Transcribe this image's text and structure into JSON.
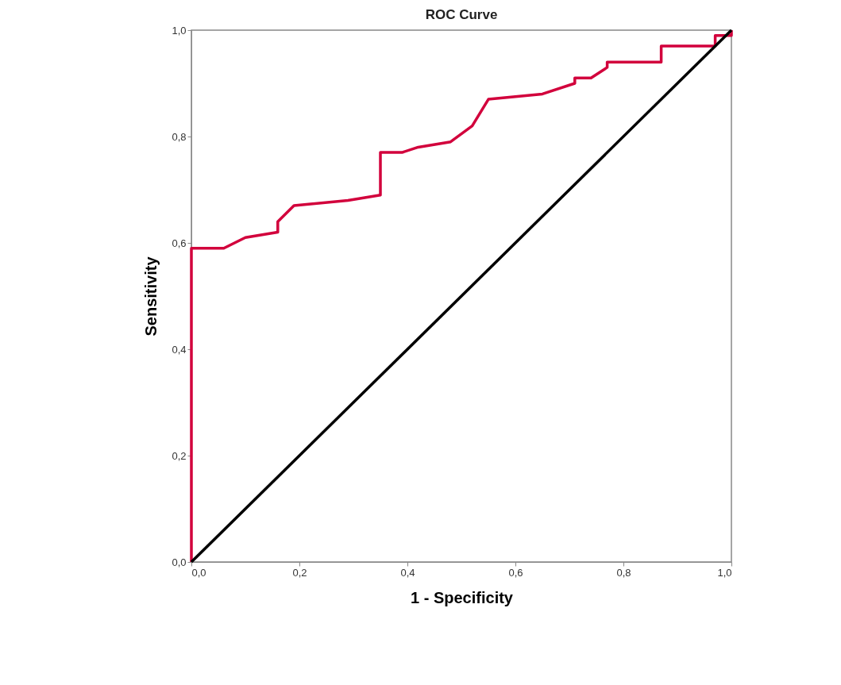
{
  "chart_data": {
    "type": "line",
    "title": "ROC Curve",
    "xlabel": "1 - Specificity",
    "ylabel": "Sensitivity",
    "xlim": [
      0,
      1
    ],
    "ylim": [
      0,
      1
    ],
    "xticks": [
      {
        "value": 0,
        "label": "0,0"
      },
      {
        "value": 0.2,
        "label": "0,2"
      },
      {
        "value": 0.4,
        "label": "0,4"
      },
      {
        "value": 0.6,
        "label": "0,6"
      },
      {
        "value": 0.8,
        "label": "0,8"
      },
      {
        "value": 1,
        "label": "1,0"
      }
    ],
    "yticks": [
      {
        "value": 0,
        "label": "0,0"
      },
      {
        "value": 0.2,
        "label": "0,2"
      },
      {
        "value": 0.4,
        "label": "0,4"
      },
      {
        "value": 0.6,
        "label": "0,6"
      },
      {
        "value": 0.8,
        "label": "0,8"
      },
      {
        "value": 1,
        "label": "1,0"
      }
    ],
    "grid": false,
    "marker": "none",
    "line_style": "solid",
    "series": [
      {
        "color": "#d2003c",
        "x": [
          0,
          0,
          0.06,
          0.1,
          0.16,
          0.16,
          0.19,
          0.29,
          0.35,
          0.35,
          0.39,
          0.42,
          0.48,
          0.52,
          0.55,
          0.65,
          0.71,
          0.71,
          0.74,
          0.77,
          0.77,
          0.87,
          0.87,
          0.97,
          0.97,
          1,
          1
        ],
        "values": [
          0,
          0.59,
          0.59,
          0.61,
          0.62,
          0.64,
          0.67,
          0.68,
          0.69,
          0.77,
          0.77,
          0.78,
          0.79,
          0.82,
          0.87,
          0.88,
          0.9,
          0.91,
          0.91,
          0.93,
          0.94,
          0.94,
          0.97,
          0.97,
          0.99,
          0.99,
          1
        ]
      },
      {
        "color": "#000000",
        "x": [
          0,
          1
        ],
        "values": [
          0,
          1
        ]
      }
    ]
  }
}
